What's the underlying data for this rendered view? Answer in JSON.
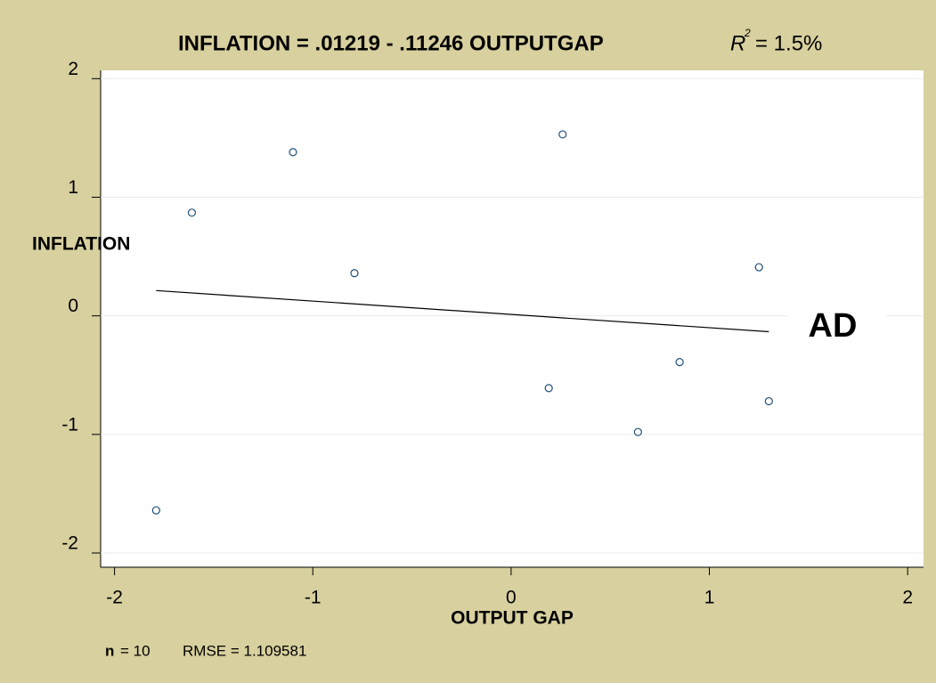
{
  "chart_data": {
    "type": "scatter",
    "title": "INFLATION = .01219 - .11246 OUTPUTGAP",
    "r2_symbol": "R",
    "r2_sup": "2",
    "r2_text": "= 1.5%",
    "x_label": "OUTPUT GAP",
    "y_label": "INFLATION",
    "points": {
      "color": "#1f4e79",
      "x": [
        -1.79,
        -1.61,
        -1.1,
        -0.79,
        0.26,
        0.19,
        0.64,
        0.85,
        1.25,
        1.3
      ],
      "y": [
        -1.64,
        0.87,
        1.38,
        0.36,
        1.53,
        -0.61,
        -0.98,
        -0.39,
        0.41,
        -0.72
      ]
    },
    "fit": {
      "color": "#000000",
      "x": [
        -1.79,
        1.3
      ],
      "y": [
        0.213,
        -0.134
      ]
    },
    "annotation": "AD",
    "xlim": [
      -2.07,
      2.08
    ],
    "ylim": [
      -2.12,
      2.07
    ],
    "xticks": [
      -2,
      -1,
      0,
      1,
      2
    ],
    "yticks": [
      2,
      1,
      0,
      -1,
      -2
    ],
    "grid": true,
    "footnote": {
      "n_label": "n",
      "n_text": "= 10",
      "rmse_text": "RMSE =  1.109581"
    }
  }
}
